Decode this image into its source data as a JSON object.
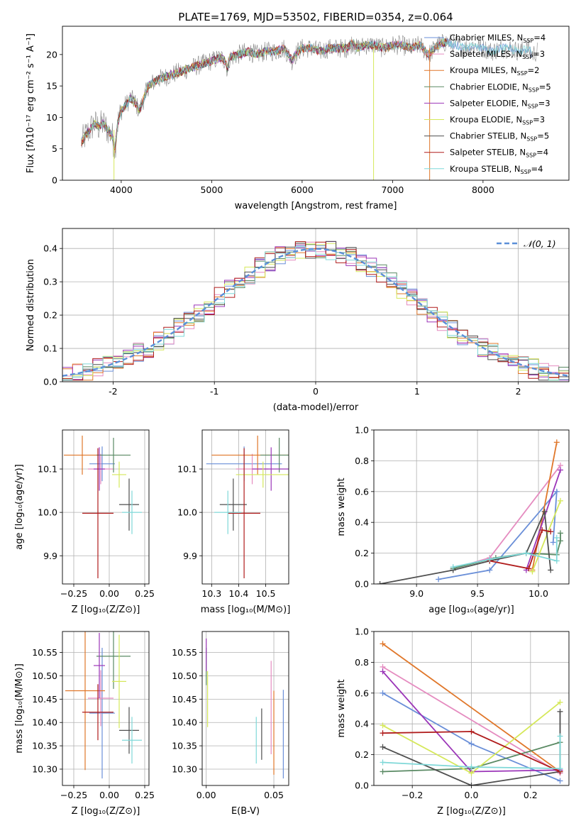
{
  "figure": {
    "title": "PLATE=1769, MJD=53502, FIBERID=0354, z=0.064"
  },
  "colors": {
    "Chabrier MILES": "#6a8fd8",
    "Salpeter MILES": "#e58cc0",
    "Kroupa MILES": "#e0772a",
    "Chabrier ELODIE": "#5a8a64",
    "Salpeter ELODIE": "#9b35b8",
    "Kroupa ELODIE": "#d5e85a",
    "Chabrier STELIB": "#4f4f4f",
    "Salpeter STELIB": "#b01c1c",
    "Kroupa STELIB": "#7fd8d8",
    "gaussian": "#5b8fd8",
    "grid": "#b0b0b0"
  },
  "chart_data": [
    {
      "id": "spectrum",
      "type": "line",
      "title": "PLATE=1769, MJD=53502, FIBERID=0354, z=0.064",
      "xlabel": "wavelength [Angstrom, rest frame]",
      "ylabel": "Flux [fλ10⁻¹⁷ erg cm⁻² s⁻¹ A⁻¹]",
      "xlim": [
        3350,
        8950
      ],
      "ylim": [
        0,
        24.5
      ],
      "xticks": [
        4000,
        5000,
        6000,
        7000,
        8000
      ],
      "yticks": [
        0,
        5,
        10,
        15,
        20
      ],
      "grid": false,
      "legend": "right",
      "legend_entries": [
        {
          "label": "Chabrier MILES, N",
          "sub": "SSP",
          "rest": "=4",
          "model": "Chabrier MILES"
        },
        {
          "label": "Salpeter MILES, N",
          "sub": "SSP",
          "rest": "=3",
          "model": "Salpeter MILES"
        },
        {
          "label": "Kroupa MILES, N",
          "sub": "SSP",
          "rest": "=2",
          "model": "Kroupa MILES"
        },
        {
          "label": "Chabrier ELODIE, N",
          "sub": "SSP",
          "rest": "=5",
          "model": "Chabrier ELODIE"
        },
        {
          "label": "Salpeter ELODIE, N",
          "sub": "SSP",
          "rest": "=3",
          "model": "Salpeter ELODIE"
        },
        {
          "label": "Kroupa ELODIE, N",
          "sub": "SSP",
          "rest": "=3",
          "model": "Kroupa ELODIE"
        },
        {
          "label": "Chabrier STELIB, N",
          "sub": "SSP",
          "rest": "=5",
          "model": "Chabrier STELIB"
        },
        {
          "label": "Salpeter STELIB, N",
          "sub": "SSP",
          "rest": "=4",
          "model": "Salpeter STELIB"
        },
        {
          "label": "Kroupa STELIB, N",
          "sub": "SSP",
          "rest": "=4",
          "model": "Kroupa STELIB"
        }
      ],
      "data_x": [
        3560,
        3600,
        3650,
        3700,
        3750,
        3800,
        3850,
        3900,
        3930,
        3960,
        4000,
        4050,
        4100,
        4150,
        4200,
        4250,
        4300,
        4350,
        4400,
        4500,
        4600,
        4700,
        4800,
        4900,
        5000,
        5100,
        5150,
        5175,
        5200,
        5300,
        5400,
        5500,
        5600,
        5700,
        5800,
        5890,
        5950,
        6000,
        6100,
        6200,
        6300,
        6400,
        6500,
        6563,
        6600,
        6700,
        6800,
        6900,
        7000,
        7100,
        7200,
        7300,
        7400,
        7500,
        7600,
        7700,
        7800,
        7900,
        8000,
        8100,
        8200,
        8300,
        8400,
        8500,
        8540,
        8600
      ],
      "data_y": [
        6,
        7,
        8,
        9,
        8.5,
        9,
        8,
        7,
        5,
        9,
        11,
        12,
        13,
        12.5,
        11,
        13,
        15,
        15.5,
        16,
        16.5,
        17,
        17.5,
        18,
        18.5,
        19,
        19.5,
        19,
        17.5,
        19.5,
        20,
        20.5,
        20,
        20.5,
        20.5,
        21,
        19,
        20.5,
        21,
        21,
        20.5,
        21,
        21,
        21,
        22,
        21,
        21.5,
        21.5,
        21,
        21.5,
        21.5,
        21,
        21.5,
        20,
        21.5,
        22,
        21.5,
        21,
        21.5,
        21,
        20.5,
        21,
        21,
        20.5,
        21,
        20,
        20.5
      ],
      "model_note": "",
      "spikes": [
        {
          "x": 3920,
          "y0": 0,
          "y1": 8,
          "model": "Kroupa ELODIE"
        },
        {
          "x": 6790,
          "y0": 0,
          "y1": 21,
          "model": "Kroupa ELODIE"
        },
        {
          "x": 7410,
          "y0": 0,
          "y1": 21,
          "model": "Kroupa MILES"
        }
      ]
    },
    {
      "id": "residuals",
      "type": "step",
      "xlabel": "(data-model)/error",
      "ylabel": "Normed distribution",
      "xlim": [
        -2.5,
        2.5
      ],
      "ylim": [
        0,
        0.46
      ],
      "xticks": [
        -2,
        -1,
        0,
        1,
        2
      ],
      "yticks": [
        0.0,
        0.1,
        0.2,
        0.3,
        0.4
      ],
      "grid": true,
      "legend": "top-right",
      "legend_entries": [
        {
          "label": "𝒩(0, 1)",
          "model": "gaussian",
          "style": "dashed"
        }
      ],
      "bin_width": 0.1,
      "bin_start": -2.5
    },
    {
      "id": "age-vs-Z",
      "type": "errorbar",
      "xlabel": "Z [log₁₀(Z/Z⊙)]",
      "ylabel": "age  [log₁₀(age/yr)]",
      "xlim": [
        -0.33,
        0.28
      ],
      "ylim": [
        9.835,
        10.19
      ],
      "xticks": [
        -0.25,
        0.0,
        0.25
      ],
      "xticklabels": [
        "−0.25",
        "0.00",
        "0.25"
      ],
      "yticks": [
        9.9,
        10.0,
        10.1
      ],
      "grid": true,
      "points": [
        {
          "model": "Chabrier MILES",
          "x": -0.05,
          "xerr": 0.09,
          "y": 10.112,
          "yerr": 0.04
        },
        {
          "model": "Salpeter MILES",
          "x": -0.06,
          "xerr": 0.09,
          "y": 10.1,
          "yerr": 0.035
        },
        {
          "model": "Kroupa MILES",
          "x": -0.19,
          "xerr": 0.13,
          "y": 10.132,
          "yerr": 0.045
        },
        {
          "model": "Chabrier ELODIE",
          "x": 0.03,
          "xerr": 0.12,
          "y": 10.132,
          "yerr": 0.04
        },
        {
          "model": "Salpeter ELODIE",
          "x": -0.07,
          "xerr": 0.04,
          "y": 10.1,
          "yerr": 0.05
        },
        {
          "model": "Kroupa ELODIE",
          "x": 0.07,
          "xerr": 0.05,
          "y": 10.087,
          "yerr": 0.03
        },
        {
          "model": "Chabrier STELIB",
          "x": 0.14,
          "xerr": 0.07,
          "y": 10.018,
          "yerr": 0.06
        },
        {
          "model": "Salpeter STELIB",
          "x": -0.08,
          "xerr": 0.11,
          "y": 9.998,
          "yerr": 0.15
        },
        {
          "model": "Kroupa STELIB",
          "x": 0.16,
          "xerr": 0.07,
          "y": 10.0,
          "yerr": 0.05
        }
      ]
    },
    {
      "id": "age-vs-mass",
      "type": "errorbar",
      "xlabel": "mass [log₁₀(M/M⊙)]",
      "ylabel": "",
      "xlim": [
        10.265,
        10.585
      ],
      "ylim": [
        9.835,
        10.19
      ],
      "xticks": [
        10.3,
        10.4,
        10.5
      ],
      "xticklabels": [
        "10.3",
        "10.4",
        "10.5"
      ],
      "yticks": [
        9.9,
        10.0,
        10.1
      ],
      "grid": true,
      "points": [
        {
          "model": "Chabrier MILES",
          "x": 10.42,
          "xerr": 0.14,
          "y": 10.112,
          "yerr": 0.04
        },
        {
          "model": "Salpeter MILES",
          "x": 10.45,
          "xerr": 0.06,
          "y": 10.1,
          "yerr": 0.035
        },
        {
          "model": "Kroupa MILES",
          "x": 10.47,
          "xerr": 0.17,
          "y": 10.132,
          "yerr": 0.045
        },
        {
          "model": "Chabrier ELODIE",
          "x": 10.55,
          "xerr": 0.07,
          "y": 10.132,
          "yerr": 0.04
        },
        {
          "model": "Salpeter ELODIE",
          "x": 10.52,
          "xerr": 0.07,
          "y": 10.1,
          "yerr": 0.05
        },
        {
          "model": "Kroupa ELODIE",
          "x": 10.49,
          "xerr": 0.1,
          "y": 10.087,
          "yerr": 0.03
        },
        {
          "model": "Chabrier STELIB",
          "x": 10.38,
          "xerr": 0.05,
          "y": 10.018,
          "yerr": 0.06
        },
        {
          "model": "Salpeter STELIB",
          "x": 10.42,
          "xerr": 0.06,
          "y": 9.998,
          "yerr": 0.15
        },
        {
          "model": "Kroupa STELIB",
          "x": 10.36,
          "xerr": 0.05,
          "y": 10.0,
          "yerr": 0.05
        }
      ]
    },
    {
      "id": "weight-vs-age",
      "type": "line",
      "xlabel": "age  [log₁₀(age/yr)]",
      "ylabel": "mass weight",
      "xlim": [
        8.65,
        10.25
      ],
      "ylim": [
        0,
        1.0
      ],
      "xticks": [
        9.0,
        9.5,
        10.0
      ],
      "xticklabels": [
        "9.0",
        "9.5",
        "10.0"
      ],
      "yticks": [
        0.0,
        0.2,
        0.4,
        0.6,
        0.8,
        1.0
      ],
      "grid": true,
      "series": [
        {
          "model": "Chabrier MILES",
          "x": [
            9.18,
            9.6,
            10.15,
            10.12
          ],
          "y": [
            0.03,
            0.09,
            0.6,
            0.27
          ]
        },
        {
          "model": "Salpeter MILES",
          "x": [
            9.3,
            9.6,
            10.18
          ],
          "y": [
            0.1,
            0.17,
            0.77
          ]
        },
        {
          "model": "Kroupa MILES",
          "x": [
            9.95,
            10.15
          ],
          "y": [
            0.09,
            0.92
          ]
        },
        {
          "model": "Chabrier ELODIE",
          "x": [
            9.3,
            9.65,
            9.9,
            10.15,
            10.18,
            10.18
          ],
          "y": [
            0.1,
            0.17,
            0.2,
            0.19,
            0.28,
            0.33
          ]
        },
        {
          "model": "Salpeter ELODIE",
          "x": [
            9.9,
            10.18
          ],
          "y": [
            0.09,
            0.74
          ]
        },
        {
          "model": "Kroupa ELODIE",
          "x": [
            9.95,
            10.18
          ],
          "y": [
            0.08,
            0.54
          ]
        },
        {
          "model": "Chabrier STELIB",
          "x": [
            8.7,
            9.3,
            9.6,
            9.9,
            10.05,
            10.1
          ],
          "y": [
            0.0,
            0.09,
            0.15,
            0.2,
            0.47,
            0.09
          ]
        },
        {
          "model": "Salpeter STELIB",
          "x": [
            9.6,
            9.92,
            10.03,
            10.1
          ],
          "y": [
            0.15,
            0.1,
            0.35,
            0.34
          ]
        },
        {
          "model": "Kroupa STELIB",
          "x": [
            9.3,
            9.6,
            9.9,
            10.15,
            10.15
          ],
          "y": [
            0.11,
            0.16,
            0.2,
            0.15,
            0.3
          ]
        }
      ]
    },
    {
      "id": "mass-vs-Z",
      "type": "errorbar",
      "xlabel": "Z [log₁₀(Z/Z⊙)]",
      "ylabel": "mass [log₁₀(M/M⊙)]",
      "xlim": [
        -0.33,
        0.28
      ],
      "ylim": [
        10.265,
        10.595
      ],
      "xticks": [
        -0.25,
        0.0,
        0.25
      ],
      "xticklabels": [
        "−0.25",
        "0.00",
        "0.25"
      ],
      "yticks": [
        10.3,
        10.35,
        10.4,
        10.45,
        10.5,
        10.55
      ],
      "yticklabels": [
        "10.30",
        "10.35",
        "10.40",
        "10.45",
        "10.50",
        "10.55"
      ],
      "grid": true,
      "points": [
        {
          "model": "Chabrier MILES",
          "x": -0.05,
          "xerr": 0.09,
          "y": 10.42,
          "yerr": 0.14
        },
        {
          "model": "Salpeter MILES",
          "x": -0.06,
          "xerr": 0.09,
          "y": 10.452,
          "yerr": 0.06
        },
        {
          "model": "Kroupa MILES",
          "x": -0.17,
          "xerr": 0.14,
          "y": 10.468,
          "yerr": 0.17
        },
        {
          "model": "Chabrier ELODIE",
          "x": 0.03,
          "xerr": 0.12,
          "y": 10.542,
          "yerr": 0.07
        },
        {
          "model": "Salpeter ELODIE",
          "x": -0.07,
          "xerr": 0.04,
          "y": 10.522,
          "yerr": 0.07
        },
        {
          "model": "Kroupa ELODIE",
          "x": 0.07,
          "xerr": 0.05,
          "y": 10.488,
          "yerr": 0.1
        },
        {
          "model": "Chabrier STELIB",
          "x": 0.14,
          "xerr": 0.07,
          "y": 10.383,
          "yerr": 0.05
        },
        {
          "model": "Salpeter STELIB",
          "x": -0.08,
          "xerr": 0.11,
          "y": 10.422,
          "yerr": 0.06
        },
        {
          "model": "Kroupa STELIB",
          "x": 0.16,
          "xerr": 0.07,
          "y": 10.362,
          "yerr": 0.05
        }
      ]
    },
    {
      "id": "mass-vs-EBV",
      "type": "errorbar",
      "xlabel": "E(B-V)",
      "ylabel": "",
      "xlim": [
        -0.003,
        0.061
      ],
      "ylim": [
        10.265,
        10.595
      ],
      "xticks": [
        0.0,
        0.05
      ],
      "xticklabels": [
        "0.00",
        "0.05"
      ],
      "yticks": [
        10.3,
        10.35,
        10.4,
        10.45,
        10.5,
        10.55
      ],
      "yticklabels": [
        "10.30",
        "10.35",
        "10.40",
        "10.45",
        "10.50",
        "10.55"
      ],
      "grid": true,
      "points": [
        {
          "model": "Chabrier MILES",
          "x": 0.057,
          "xerr": 0,
          "y": 10.375,
          "yerr": 0.095
        },
        {
          "model": "Salpeter MILES",
          "x": 0.048,
          "xerr": 0,
          "y": 10.432,
          "yerr": 0.1
        },
        {
          "model": "Kroupa MILES",
          "x": 0.05,
          "xerr": 0,
          "y": 10.378,
          "yerr": 0.09
        },
        {
          "model": "Chabrier ELODIE",
          "x": 0.0,
          "xerr": 0,
          "y": 10.52,
          "yerr": 0.04
        },
        {
          "model": "Salpeter ELODIE",
          "x": 0.0,
          "xerr": 0,
          "y": 10.545,
          "yerr": 0.035
        },
        {
          "model": "Kroupa ELODIE",
          "x": 0.001,
          "xerr": 0,
          "y": 10.45,
          "yerr": 0.06
        },
        {
          "model": "Chabrier STELIB",
          "x": 0.041,
          "xerr": 0,
          "y": 10.375,
          "yerr": 0.055
        },
        {
          "model": "Salpeter STELIB",
          "x": 0.0,
          "xerr": 0,
          "y": 10.4,
          "yerr": 0
        },
        {
          "model": "Kroupa STELIB",
          "x": 0.037,
          "xerr": 0,
          "y": 10.362,
          "yerr": 0.05
        }
      ]
    },
    {
      "id": "weight-vs-Z",
      "type": "line",
      "xlabel": "Z [log₁₀(Z/Z⊙)]",
      "ylabel": "mass weight",
      "xlim": [
        -0.33,
        0.33
      ],
      "ylim": [
        0,
        1.0
      ],
      "xticks": [
        -0.2,
        0.0,
        0.2
      ],
      "xticklabels": [
        "−0.2",
        "0.0",
        "0.2"
      ],
      "yticks": [
        0.0,
        0.2,
        0.4,
        0.6,
        0.8,
        1.0
      ],
      "grid": true,
      "series": [
        {
          "model": "Chabrier MILES",
          "x": [
            -0.3,
            0.0,
            0.3
          ],
          "y": [
            0.6,
            0.27,
            0.03
          ]
        },
        {
          "model": "Salpeter MILES",
          "x": [
            -0.3,
            0.3
          ],
          "y": [
            0.77,
            0.08
          ]
        },
        {
          "model": "Kroupa MILES",
          "x": [
            -0.3,
            0.3
          ],
          "y": [
            0.92,
            0.09
          ]
        },
        {
          "model": "Chabrier ELODIE",
          "x": [
            -0.3,
            0.0,
            0.3,
            0.3
          ],
          "y": [
            0.09,
            0.11,
            0.28,
            0.09
          ]
        },
        {
          "model": "Salpeter ELODIE",
          "x": [
            -0.3,
            0.0,
            0.3
          ],
          "y": [
            0.74,
            0.09,
            0.1
          ]
        },
        {
          "model": "Kroupa ELODIE",
          "x": [
            -0.3,
            0.0,
            0.3
          ],
          "y": [
            0.39,
            0.08,
            0.54
          ]
        },
        {
          "model": "Chabrier STELIB",
          "x": [
            -0.3,
            0.0,
            0.3,
            0.3
          ],
          "y": [
            0.25,
            0.0,
            0.09,
            0.48
          ]
        },
        {
          "model": "Salpeter STELIB",
          "x": [
            -0.3,
            0.0,
            0.3
          ],
          "y": [
            0.34,
            0.35,
            0.09
          ]
        },
        {
          "model": "Kroupa STELIB",
          "x": [
            -0.3,
            0.0,
            0.3,
            0.3
          ],
          "y": [
            0.15,
            0.12,
            0.11,
            0.32
          ]
        }
      ]
    }
  ]
}
